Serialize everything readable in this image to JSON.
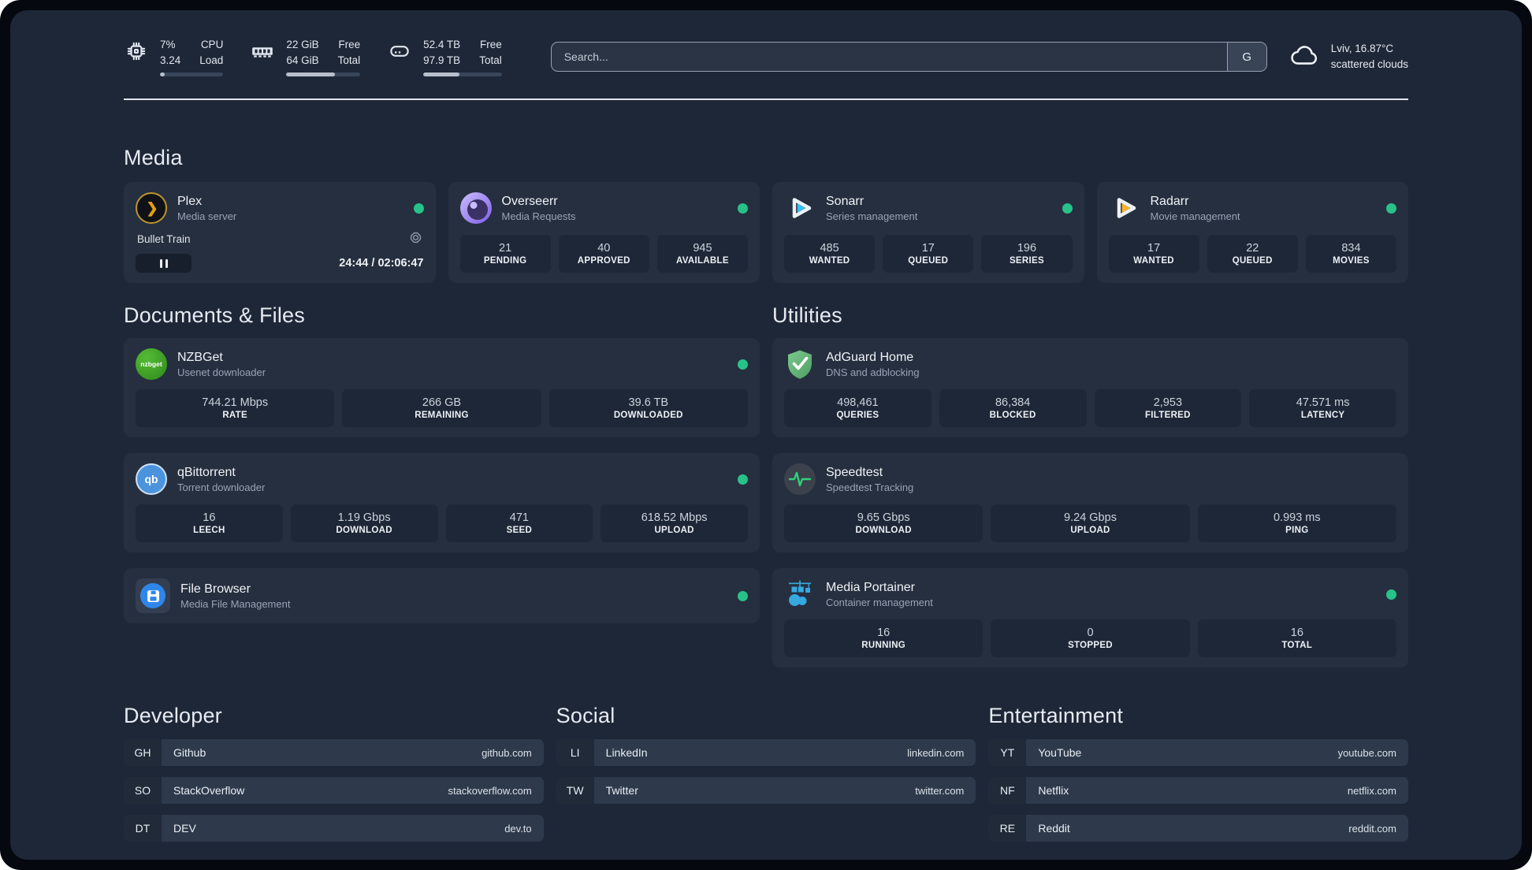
{
  "colors": {
    "status_online": "#27c289",
    "panel_bg": "#1e2738",
    "card_bg": "#262f3f"
  },
  "icons": {
    "plex_glyph": "❯",
    "nzbget_text": "nzbget",
    "qbittorrent_text": "qb"
  },
  "header": {
    "stats": [
      {
        "id": "cpu",
        "values": [
          "7%",
          "3.24"
        ],
        "labels": [
          "CPU",
          "Load"
        ],
        "progress": 7
      },
      {
        "id": "memory",
        "values": [
          "22 GiB",
          "64 GiB"
        ],
        "labels": [
          "Free",
          "Total"
        ],
        "progress": 66
      },
      {
        "id": "disk",
        "values": [
          "52.4 TB",
          "97.9 TB"
        ],
        "labels": [
          "Free",
          "Total"
        ],
        "progress": 46
      }
    ],
    "search": {
      "placeholder": "Search...",
      "engine_button": "G"
    },
    "weather": {
      "location": "Lviv, 16.87°C",
      "condition": "scattered clouds"
    }
  },
  "media": {
    "title": "Media",
    "apps": [
      {
        "name": "Plex",
        "desc": "Media server",
        "online": true,
        "now_playing": {
          "title": "Bullet Train",
          "time_display": "24:44 / 02:06:47",
          "progress_pct": 19.5,
          "state": "paused"
        }
      },
      {
        "name": "Overseerr",
        "desc": "Media Requests",
        "online": true,
        "stats": [
          {
            "value": "21",
            "label": "PENDING"
          },
          {
            "value": "40",
            "label": "APPROVED"
          },
          {
            "value": "945",
            "label": "AVAILABLE"
          }
        ]
      },
      {
        "name": "Sonarr",
        "desc": "Series management",
        "online": true,
        "stats": [
          {
            "value": "485",
            "label": "WANTED"
          },
          {
            "value": "17",
            "label": "QUEUED"
          },
          {
            "value": "196",
            "label": "SERIES"
          }
        ]
      },
      {
        "name": "Radarr",
        "desc": "Movie management",
        "online": true,
        "stats": [
          {
            "value": "17",
            "label": "WANTED"
          },
          {
            "value": "22",
            "label": "QUEUED"
          },
          {
            "value": "834",
            "label": "MOVIES"
          }
        ]
      }
    ]
  },
  "documents": {
    "title": "Documents & Files",
    "apps": [
      {
        "name": "NZBGet",
        "desc": "Usenet downloader",
        "online": true,
        "stats": [
          {
            "value": "744.21 Mbps",
            "label": "RATE"
          },
          {
            "value": "266 GB",
            "label": "REMAINING"
          },
          {
            "value": "39.6 TB",
            "label": "DOWNLOADED"
          }
        ]
      },
      {
        "name": "qBittorrent",
        "desc": "Torrent downloader",
        "online": true,
        "stats": [
          {
            "value": "16",
            "label": "LEECH"
          },
          {
            "value": "1.19 Gbps",
            "label": "DOWNLOAD"
          },
          {
            "value": "471",
            "label": "SEED"
          },
          {
            "value": "618.52 Mbps",
            "label": "UPLOAD"
          }
        ]
      },
      {
        "name": "File Browser",
        "desc": "Media File Management",
        "online": true
      }
    ]
  },
  "utilities": {
    "title": "Utilities",
    "apps": [
      {
        "name": "AdGuard Home",
        "desc": "DNS and adblocking",
        "stats": [
          {
            "value": "498,461",
            "label": "QUERIES"
          },
          {
            "value": "86,384",
            "label": "BLOCKED"
          },
          {
            "value": "2,953",
            "label": "FILTERED"
          },
          {
            "value": "47.571 ms",
            "label": "LATENCY"
          }
        ]
      },
      {
        "name": "Speedtest",
        "desc": "Speedtest Tracking",
        "stats": [
          {
            "value": "9.65 Gbps",
            "label": "DOWNLOAD"
          },
          {
            "value": "9.24 Gbps",
            "label": "UPLOAD"
          },
          {
            "value": "0.993 ms",
            "label": "PING"
          }
        ]
      },
      {
        "name": "Media Portainer",
        "desc": "Container management",
        "online": true,
        "stats": [
          {
            "value": "16",
            "label": "RUNNING"
          },
          {
            "value": "0",
            "label": "STOPPED"
          },
          {
            "value": "16",
            "label": "TOTAL"
          }
        ]
      }
    ]
  },
  "bookmarks": [
    {
      "title": "Developer",
      "links": [
        {
          "abbr": "GH",
          "name": "Github",
          "url": "github.com"
        },
        {
          "abbr": "SO",
          "name": "StackOverflow",
          "url": "stackoverflow.com"
        },
        {
          "abbr": "DT",
          "name": "DEV",
          "url": "dev.to"
        }
      ]
    },
    {
      "title": "Social",
      "links": [
        {
          "abbr": "LI",
          "name": "LinkedIn",
          "url": "linkedin.com"
        },
        {
          "abbr": "TW",
          "name": "Twitter",
          "url": "twitter.com"
        }
      ]
    },
    {
      "title": "Entertainment",
      "links": [
        {
          "abbr": "YT",
          "name": "YouTube",
          "url": "youtube.com"
        },
        {
          "abbr": "NF",
          "name": "Netflix",
          "url": "netflix.com"
        },
        {
          "abbr": "RE",
          "name": "Reddit",
          "url": "reddit.com"
        }
      ]
    }
  ]
}
